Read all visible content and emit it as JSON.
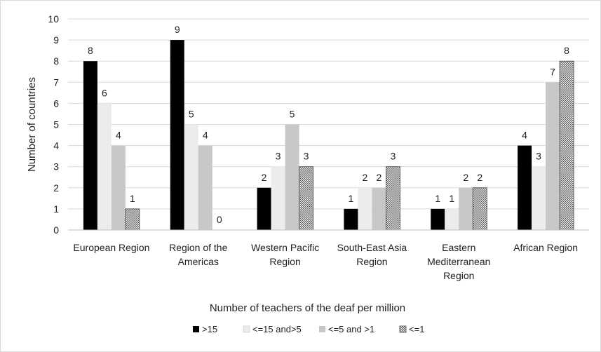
{
  "chart_data": {
    "type": "bar",
    "title": "",
    "xlabel": "Number of teachers of the deaf per million",
    "ylabel": "Number of countries",
    "ylim": [
      0,
      10
    ],
    "yticks": [
      0,
      1,
      2,
      3,
      4,
      5,
      6,
      7,
      8,
      9,
      10
    ],
    "grid": true,
    "legend_position": "bottom",
    "categories": [
      [
        "European Region"
      ],
      [
        "Region of the",
        "Americas"
      ],
      [
        "Western Pacific",
        "Region"
      ],
      [
        "South-East Asia",
        "Region"
      ],
      [
        "Eastern",
        "Mediterranean",
        "Region"
      ],
      [
        "African Region"
      ]
    ],
    "series": [
      {
        "name": ">15",
        "color": "#000000",
        "pattern": "solid",
        "values": [
          8,
          9,
          2,
          1,
          1,
          4
        ]
      },
      {
        "name": "<=15 and>5",
        "color": "#ececec",
        "pattern": "solid",
        "values": [
          6,
          5,
          3,
          2,
          1,
          3
        ]
      },
      {
        "name": "<=5 and >1",
        "color": "#c8c8c8",
        "pattern": "solid",
        "values": [
          4,
          4,
          5,
          2,
          2,
          7
        ]
      },
      {
        "name": "<=1",
        "color": "#bfbfbf",
        "pattern": "dots",
        "values": [
          1,
          0,
          3,
          3,
          2,
          8
        ]
      }
    ]
  }
}
